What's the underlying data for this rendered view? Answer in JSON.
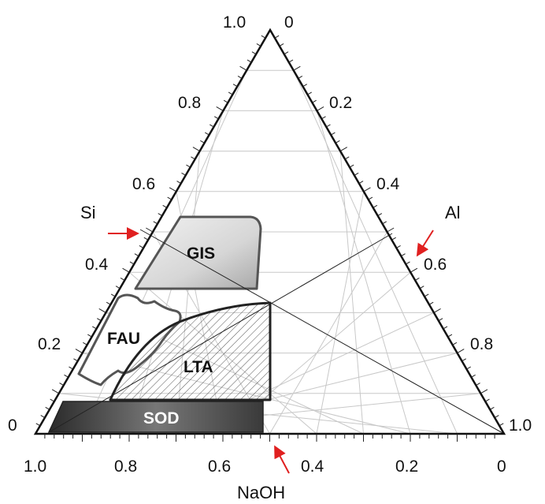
{
  "diagram": {
    "type": "ternary-phase-diagram",
    "axes": {
      "bottom": {
        "title": "NaOH",
        "ticks": [
          "1.0",
          "0.8",
          "0.6",
          "0.4",
          "0.2",
          "0"
        ]
      },
      "left": {
        "title": "Si",
        "ticks": [
          "0",
          "0.2",
          "0.4",
          "0.6",
          "0.8",
          "1.0"
        ]
      },
      "right": {
        "title": "Al",
        "ticks": [
          "0",
          "0.2",
          "0.4",
          "0.6",
          "0.8",
          "1.0"
        ]
      }
    },
    "regions": [
      {
        "id": "gis",
        "label": "GIS"
      },
      {
        "id": "fau",
        "label": "FAU"
      },
      {
        "id": "lta",
        "label": "LTA"
      },
      {
        "id": "sod",
        "label": "SOD"
      }
    ],
    "arrow_color": "#e02020",
    "grid_color": "#c8c8c8"
  }
}
